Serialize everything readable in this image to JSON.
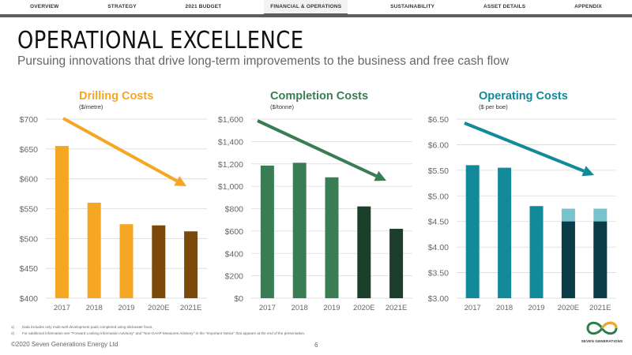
{
  "nav": {
    "items": [
      "OVERVIEW",
      "STRATEGY",
      "2021 BUDGET",
      "FINANCIAL & OPERATIONS",
      "SUSTAINABILITY",
      "ASSET DETAILS",
      "APPENDIX"
    ],
    "active_index": 3
  },
  "header": {
    "title": "OPERATIONAL EXCELLENCE",
    "subtitle": "Pursuing innovations that drive long-term improvements to the business and free cash flow"
  },
  "colors": {
    "drilling": "#f5a623",
    "drilling_dark": "#7b4a0a",
    "completion": "#3a7d55",
    "completion_dark": "#1c3f2b",
    "operating": "#138a9a",
    "operating_dark": "#0b3d48",
    "operating_light": "#79c3cf",
    "nav_accent": "#2f7d4a"
  },
  "chart_data": [
    {
      "type": "bar",
      "title": "Drilling Costs",
      "unit": "($/metre)",
      "categories": [
        "2017",
        "2018",
        "2019",
        "2020E",
        "2021E"
      ],
      "values": [
        655,
        560,
        524,
        522,
        512
      ],
      "ylim": [
        400,
        700
      ],
      "yticks": [
        400,
        450,
        500,
        550,
        600,
        650,
        700
      ],
      "ytick_labels": [
        "$400",
        "$450",
        "$500",
        "$550",
        "$600",
        "$650",
        "$700"
      ],
      "grid": true,
      "trend": "decreasing-arrow"
    },
    {
      "type": "bar",
      "title": "Completion Costs",
      "unit": "($/tonne)",
      "categories": [
        "2017",
        "2018",
        "2019",
        "2020E",
        "2021E"
      ],
      "values": [
        1185,
        1210,
        1080,
        820,
        620
      ],
      "ylim": [
        0,
        1600
      ],
      "yticks": [
        0,
        200,
        400,
        600,
        800,
        1000,
        1200,
        1400,
        1600
      ],
      "ytick_labels": [
        "$0",
        "$200",
        "$400",
        "$600",
        "$800",
        "$1,000",
        "$1,200",
        "$1,400",
        "$1,600"
      ],
      "grid": true,
      "trend": "decreasing-arrow"
    },
    {
      "type": "bar",
      "title": "Operating Costs",
      "unit": "($ per boe)",
      "categories": [
        "2017",
        "2018",
        "2019",
        "2020E",
        "2021E"
      ],
      "values": [
        5.6,
        5.55,
        4.8,
        4.75,
        4.75
      ],
      "stacked_lower": [
        null,
        null,
        null,
        4.5,
        4.5
      ],
      "ylim": [
        3.0,
        6.5
      ],
      "yticks": [
        3.0,
        3.5,
        4.0,
        4.5,
        5.0,
        5.5,
        6.0,
        6.5
      ],
      "ytick_labels": [
        "$3.00",
        "$3.50",
        "$4.00",
        "$4.50",
        "$5.00",
        "$5.50",
        "$6.00",
        "$6.50"
      ],
      "grid": true,
      "trend": "decreasing-arrow"
    }
  ],
  "footnotes": [
    {
      "num": "1)",
      "text": "Data includes only multi-well development pads completed using slickwater fracs."
    },
    {
      "num": "2)",
      "text": "For additional information see \"Forward Looking Information Advisory\" and \"Non-GAAP Measures Advisory\" in the \"Important Notice\" that appears at the end of the presentation."
    }
  ],
  "footer": {
    "copyright": "©2020 Seven Generations Energy Ltd",
    "page": "6",
    "logo_text": "SEVEN GENERATIONS"
  },
  "logo_icon": "infinity-logo-icon"
}
